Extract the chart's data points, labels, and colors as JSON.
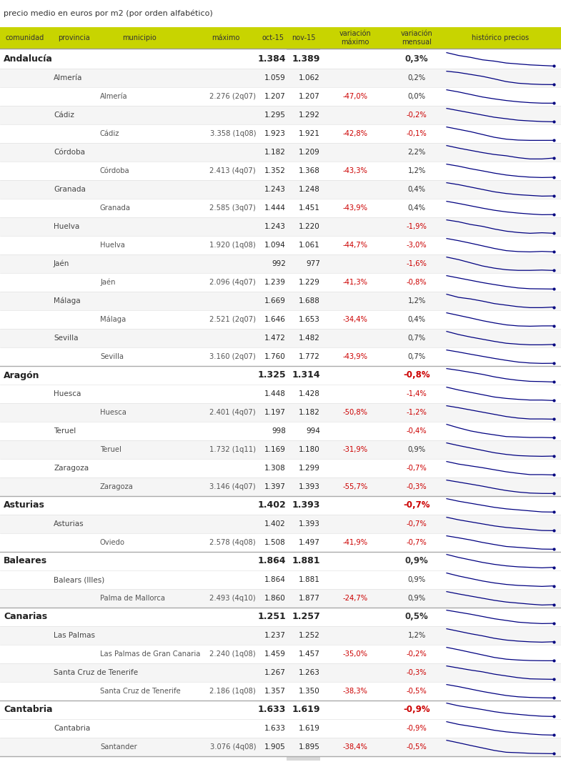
{
  "title": "precio medio en euros por m2 (por orden alfabético)",
  "header": [
    "comunidad",
    "provincia",
    "municipio",
    "máximo",
    "oct-15",
    "nov-15",
    "variación\nmáximo",
    "variación\nmensual",
    "histórico precios"
  ],
  "col_header_bg": "#c8d400",
  "rows": [
    {
      "level": 0,
      "col0": "Andalucía",
      "col1": "",
      "col2": "",
      "col3": "",
      "oct15": "1.384",
      "nov15": "1.389",
      "var_max": "",
      "var_men": "0,3%",
      "var_max_neg": false,
      "var_men_neg": false
    },
    {
      "level": 1,
      "col0": "",
      "col1": "Almería",
      "col2": "",
      "col3": "",
      "oct15": "1.059",
      "nov15": "1.062",
      "var_max": "",
      "var_men": "0,2%",
      "var_max_neg": false,
      "var_men_neg": false
    },
    {
      "level": 2,
      "col0": "",
      "col1": "",
      "col2": "Almería",
      "col3": "2.276 (2q07)",
      "oct15": "1.207",
      "nov15": "1.207",
      "var_max": "-47,0%",
      "var_men": "0,0%",
      "var_max_neg": true,
      "var_men_neg": false
    },
    {
      "level": 1,
      "col0": "",
      "col1": "Cádiz",
      "col2": "",
      "col3": "",
      "oct15": "1.295",
      "nov15": "1.292",
      "var_max": "",
      "var_men": "-0,2%",
      "var_max_neg": false,
      "var_men_neg": true
    },
    {
      "level": 2,
      "col0": "",
      "col1": "",
      "col2": "Cádiz",
      "col3": "3.358 (1q08)",
      "oct15": "1.923",
      "nov15": "1.921",
      "var_max": "-42,8%",
      "var_men": "-0,1%",
      "var_max_neg": true,
      "var_men_neg": true
    },
    {
      "level": 1,
      "col0": "",
      "col1": "Córdoba",
      "col2": "",
      "col3": "",
      "oct15": "1.182",
      "nov15": "1.209",
      "var_max": "",
      "var_men": "2,2%",
      "var_max_neg": false,
      "var_men_neg": false
    },
    {
      "level": 2,
      "col0": "",
      "col1": "",
      "col2": "Córdoba",
      "col3": "2.413 (4q07)",
      "oct15": "1.352",
      "nov15": "1.368",
      "var_max": "-43,3%",
      "var_men": "1,2%",
      "var_max_neg": true,
      "var_men_neg": false
    },
    {
      "level": 1,
      "col0": "",
      "col1": "Granada",
      "col2": "",
      "col3": "",
      "oct15": "1.243",
      "nov15": "1.248",
      "var_max": "",
      "var_men": "0,4%",
      "var_max_neg": false,
      "var_men_neg": false
    },
    {
      "level": 2,
      "col0": "",
      "col1": "",
      "col2": "Granada",
      "col3": "2.585 (3q07)",
      "oct15": "1.444",
      "nov15": "1.451",
      "var_max": "-43,9%",
      "var_men": "0,4%",
      "var_max_neg": true,
      "var_men_neg": false
    },
    {
      "level": 1,
      "col0": "",
      "col1": "Huelva",
      "col2": "",
      "col3": "",
      "oct15": "1.243",
      "nov15": "1.220",
      "var_max": "",
      "var_men": "-1,9%",
      "var_max_neg": false,
      "var_men_neg": true
    },
    {
      "level": 2,
      "col0": "",
      "col1": "",
      "col2": "Huelva",
      "col3": "1.920 (1q08)",
      "oct15": "1.094",
      "nov15": "1.061",
      "var_max": "-44,7%",
      "var_men": "-3,0%",
      "var_max_neg": true,
      "var_men_neg": true
    },
    {
      "level": 1,
      "col0": "",
      "col1": "Jaén",
      "col2": "",
      "col3": "",
      "oct15": "992",
      "nov15": "977",
      "var_max": "",
      "var_men": "-1,6%",
      "var_max_neg": false,
      "var_men_neg": true
    },
    {
      "level": 2,
      "col0": "",
      "col1": "",
      "col2": "Jaén",
      "col3": "2.096 (4q07)",
      "oct15": "1.239",
      "nov15": "1.229",
      "var_max": "-41,3%",
      "var_men": "-0,8%",
      "var_max_neg": true,
      "var_men_neg": true
    },
    {
      "level": 1,
      "col0": "",
      "col1": "Málaga",
      "col2": "",
      "col3": "",
      "oct15": "1.669",
      "nov15": "1.688",
      "var_max": "",
      "var_men": "1,2%",
      "var_max_neg": false,
      "var_men_neg": false
    },
    {
      "level": 2,
      "col0": "",
      "col1": "",
      "col2": "Málaga",
      "col3": "2.521 (2q07)",
      "oct15": "1.646",
      "nov15": "1.653",
      "var_max": "-34,4%",
      "var_men": "0,4%",
      "var_max_neg": true,
      "var_men_neg": false
    },
    {
      "level": 1,
      "col0": "",
      "col1": "Sevilla",
      "col2": "",
      "col3": "",
      "oct15": "1.472",
      "nov15": "1.482",
      "var_max": "",
      "var_men": "0,7%",
      "var_max_neg": false,
      "var_men_neg": false
    },
    {
      "level": 2,
      "col0": "",
      "col1": "",
      "col2": "Sevilla",
      "col3": "3.160 (2q07)",
      "oct15": "1.760",
      "nov15": "1.772",
      "var_max": "-43,9%",
      "var_men": "0,7%",
      "var_max_neg": true,
      "var_men_neg": false
    },
    {
      "level": 0,
      "col0": "Aragón",
      "col1": "",
      "col2": "",
      "col3": "",
      "oct15": "1.325",
      "nov15": "1.314",
      "var_max": "",
      "var_men": "-0,8%",
      "var_max_neg": false,
      "var_men_neg": true
    },
    {
      "level": 1,
      "col0": "",
      "col1": "Huesca",
      "col2": "",
      "col3": "",
      "oct15": "1.448",
      "nov15": "1.428",
      "var_max": "",
      "var_men": "-1,4%",
      "var_max_neg": false,
      "var_men_neg": true
    },
    {
      "level": 2,
      "col0": "",
      "col1": "",
      "col2": "Huesca",
      "col3": "2.401 (4q07)",
      "oct15": "1.197",
      "nov15": "1.182",
      "var_max": "-50,8%",
      "var_men": "-1,2%",
      "var_max_neg": true,
      "var_men_neg": true
    },
    {
      "level": 1,
      "col0": "",
      "col1": "Teruel",
      "col2": "",
      "col3": "",
      "oct15": "998",
      "nov15": "994",
      "var_max": "",
      "var_men": "-0,4%",
      "var_max_neg": false,
      "var_men_neg": true
    },
    {
      "level": 2,
      "col0": "",
      "col1": "",
      "col2": "Teruel",
      "col3": "1.732 (1q11)",
      "oct15": "1.169",
      "nov15": "1.180",
      "var_max": "-31,9%",
      "var_men": "0,9%",
      "var_max_neg": true,
      "var_men_neg": false
    },
    {
      "level": 1,
      "col0": "",
      "col1": "Zaragoza",
      "col2": "",
      "col3": "",
      "oct15": "1.308",
      "nov15": "1.299",
      "var_max": "",
      "var_men": "-0,7%",
      "var_max_neg": false,
      "var_men_neg": true
    },
    {
      "level": 2,
      "col0": "",
      "col1": "",
      "col2": "Zaragoza",
      "col3": "3.146 (4q07)",
      "oct15": "1.397",
      "nov15": "1.393",
      "var_max": "-55,7%",
      "var_men": "-0,3%",
      "var_max_neg": true,
      "var_men_neg": true
    },
    {
      "level": 0,
      "col0": "Asturias",
      "col1": "",
      "col2": "",
      "col3": "",
      "oct15": "1.402",
      "nov15": "1.393",
      "var_max": "",
      "var_men": "-0,7%",
      "var_max_neg": false,
      "var_men_neg": true
    },
    {
      "level": 1,
      "col0": "",
      "col1": "Asturias",
      "col2": "",
      "col3": "",
      "oct15": "1.402",
      "nov15": "1.393",
      "var_max": "",
      "var_men": "-0,7%",
      "var_max_neg": false,
      "var_men_neg": true
    },
    {
      "level": 2,
      "col0": "",
      "col1": "",
      "col2": "Oviedo",
      "col3": "2.578 (4q08)",
      "oct15": "1.508",
      "nov15": "1.497",
      "var_max": "-41,9%",
      "var_men": "-0,7%",
      "var_max_neg": true,
      "var_men_neg": true
    },
    {
      "level": 0,
      "col0": "Baleares",
      "col1": "",
      "col2": "",
      "col3": "",
      "oct15": "1.864",
      "nov15": "1.881",
      "var_max": "",
      "var_men": "0,9%",
      "var_max_neg": false,
      "var_men_neg": false
    },
    {
      "level": 1,
      "col0": "",
      "col1": "Balears (Illes)",
      "col2": "",
      "col3": "",
      "oct15": "1.864",
      "nov15": "1.881",
      "var_max": "",
      "var_men": "0,9%",
      "var_max_neg": false,
      "var_men_neg": false
    },
    {
      "level": 2,
      "col0": "",
      "col1": "",
      "col2": "Palma de Mallorca",
      "col3": "2.493 (4q10)",
      "oct15": "1.860",
      "nov15": "1.877",
      "var_max": "-24,7%",
      "var_men": "0,9%",
      "var_max_neg": true,
      "var_men_neg": false
    },
    {
      "level": 0,
      "col0": "Canarias",
      "col1": "",
      "col2": "",
      "col3": "",
      "oct15": "1.251",
      "nov15": "1.257",
      "var_max": "",
      "var_men": "0,5%",
      "var_max_neg": false,
      "var_men_neg": false
    },
    {
      "level": 1,
      "col0": "",
      "col1": "Las Palmas",
      "col2": "",
      "col3": "",
      "oct15": "1.237",
      "nov15": "1.252",
      "var_max": "",
      "var_men": "1,2%",
      "var_max_neg": false,
      "var_men_neg": false
    },
    {
      "level": 2,
      "col0": "",
      "col1": "",
      "col2": "Las Palmas de Gran Canaria",
      "col3": "2.240 (1q08)",
      "oct15": "1.459",
      "nov15": "1.457",
      "var_max": "-35,0%",
      "var_men": "-0,2%",
      "var_max_neg": true,
      "var_men_neg": true
    },
    {
      "level": 1,
      "col0": "",
      "col1": "Santa Cruz de Tenerife",
      "col2": "",
      "col3": "",
      "oct15": "1.267",
      "nov15": "1.263",
      "var_max": "",
      "var_men": "-0,3%",
      "var_max_neg": false,
      "var_men_neg": true
    },
    {
      "level": 2,
      "col0": "",
      "col1": "",
      "col2": "Santa Cruz de Tenerife",
      "col3": "2.186 (1q08)",
      "oct15": "1.357",
      "nov15": "1.350",
      "var_max": "-38,3%",
      "var_men": "-0,5%",
      "var_max_neg": true,
      "var_men_neg": true
    },
    {
      "level": 0,
      "col0": "Cantabria",
      "col1": "",
      "col2": "",
      "col3": "",
      "oct15": "1.633",
      "nov15": "1.619",
      "var_max": "",
      "var_men": "-0,9%",
      "var_max_neg": false,
      "var_men_neg": true
    },
    {
      "level": 1,
      "col0": "",
      "col1": "Cantabria",
      "col2": "",
      "col3": "",
      "oct15": "1.633",
      "nov15": "1.619",
      "var_max": "",
      "var_men": "-0,9%",
      "var_max_neg": false,
      "var_men_neg": true
    },
    {
      "level": 2,
      "col0": "",
      "col1": "",
      "col2": "Santander",
      "col3": "3.076 (4q08)",
      "oct15": "1.905",
      "nov15": "1.895",
      "var_max": "-38,4%",
      "var_men": "-0,5%",
      "var_max_neg": true,
      "var_men_neg": true
    }
  ],
  "sparkline_data": [
    [
      2.1,
      1.95,
      1.85,
      1.72,
      1.65,
      1.55,
      1.5,
      1.45,
      1.42,
      1.39
    ],
    [
      1.9,
      1.82,
      1.7,
      1.58,
      1.42,
      1.25,
      1.15,
      1.1,
      1.07,
      1.062
    ],
    [
      2.27,
      2.1,
      1.9,
      1.7,
      1.55,
      1.42,
      1.32,
      1.25,
      1.21,
      1.207
    ],
    [
      2.2,
      2.05,
      1.9,
      1.75,
      1.6,
      1.5,
      1.4,
      1.35,
      1.31,
      1.292
    ],
    [
      3.35,
      3.1,
      2.85,
      2.55,
      2.25,
      2.05,
      1.95,
      1.92,
      1.92,
      1.921
    ],
    [
      1.6,
      1.52,
      1.45,
      1.38,
      1.32,
      1.28,
      1.22,
      1.18,
      1.18,
      1.209
    ],
    [
      2.41,
      2.25,
      2.05,
      1.88,
      1.7,
      1.55,
      1.45,
      1.38,
      1.35,
      1.368
    ],
    [
      1.8,
      1.72,
      1.62,
      1.52,
      1.42,
      1.35,
      1.3,
      1.27,
      1.24,
      1.248
    ],
    [
      2.58,
      2.4,
      2.2,
      2.0,
      1.82,
      1.68,
      1.58,
      1.5,
      1.44,
      1.451
    ],
    [
      1.72,
      1.65,
      1.55,
      1.48,
      1.38,
      1.3,
      1.25,
      1.22,
      1.24,
      1.22
    ],
    [
      1.92,
      1.78,
      1.62,
      1.45,
      1.28,
      1.14,
      1.08,
      1.06,
      1.09,
      1.061
    ],
    [
      1.4,
      1.32,
      1.22,
      1.12,
      1.05,
      1.0,
      0.98,
      0.98,
      0.99,
      0.977
    ],
    [
      2.1,
      1.95,
      1.8,
      1.65,
      1.52,
      1.4,
      1.3,
      1.25,
      1.24,
      1.229
    ],
    [
      2.1,
      2.0,
      1.95,
      1.88,
      1.8,
      1.75,
      1.7,
      1.67,
      1.67,
      1.688
    ],
    [
      2.52,
      2.35,
      2.18,
      2.0,
      1.85,
      1.72,
      1.65,
      1.63,
      1.65,
      1.653
    ],
    [
      1.9,
      1.8,
      1.72,
      1.65,
      1.58,
      1.52,
      1.49,
      1.47,
      1.47,
      1.482
    ],
    [
      3.16,
      2.95,
      2.72,
      2.5,
      2.28,
      2.08,
      1.9,
      1.8,
      1.76,
      1.772
    ],
    [
      1.85,
      1.78,
      1.7,
      1.62,
      1.52,
      1.44,
      1.38,
      1.34,
      1.33,
      1.314
    ],
    [
      2.0,
      1.88,
      1.78,
      1.68,
      1.58,
      1.52,
      1.48,
      1.45,
      1.45,
      1.428
    ],
    [
      2.4,
      2.22,
      2.02,
      1.82,
      1.62,
      1.42,
      1.28,
      1.2,
      1.2,
      1.182
    ],
    [
      1.3,
      1.22,
      1.15,
      1.1,
      1.06,
      1.02,
      1.01,
      1.0,
      1.0,
      0.994
    ],
    [
      1.73,
      1.62,
      1.52,
      1.42,
      1.32,
      1.25,
      1.2,
      1.18,
      1.17,
      1.18
    ],
    [
      1.82,
      1.72,
      1.65,
      1.58,
      1.5,
      1.42,
      1.36,
      1.31,
      1.31,
      1.299
    ],
    [
      3.14,
      2.88,
      2.62,
      2.35,
      2.05,
      1.78,
      1.58,
      1.45,
      1.4,
      1.393
    ],
    [
      1.92,
      1.82,
      1.74,
      1.66,
      1.58,
      1.52,
      1.48,
      1.44,
      1.4,
      1.393
    ],
    [
      1.92,
      1.82,
      1.74,
      1.66,
      1.58,
      1.52,
      1.48,
      1.44,
      1.4,
      1.393
    ],
    [
      2.58,
      2.42,
      2.25,
      2.05,
      1.88,
      1.72,
      1.65,
      1.58,
      1.51,
      1.497
    ],
    [
      2.4,
      2.28,
      2.18,
      2.08,
      2.0,
      1.94,
      1.9,
      1.88,
      1.86,
      1.881
    ],
    [
      2.4,
      2.28,
      2.18,
      2.08,
      2.0,
      1.94,
      1.9,
      1.88,
      1.86,
      1.881
    ],
    [
      2.49,
      2.38,
      2.28,
      2.18,
      2.08,
      2.0,
      1.95,
      1.9,
      1.86,
      1.877
    ],
    [
      1.72,
      1.65,
      1.58,
      1.5,
      1.42,
      1.36,
      1.3,
      1.27,
      1.25,
      1.257
    ],
    [
      1.62,
      1.55,
      1.48,
      1.42,
      1.35,
      1.3,
      1.27,
      1.25,
      1.24,
      1.252
    ],
    [
      2.24,
      2.1,
      1.95,
      1.8,
      1.65,
      1.55,
      1.5,
      1.47,
      1.46,
      1.457
    ],
    [
      1.72,
      1.65,
      1.58,
      1.52,
      1.44,
      1.38,
      1.32,
      1.28,
      1.27,
      1.263
    ],
    [
      2.18,
      2.05,
      1.9,
      1.75,
      1.62,
      1.5,
      1.42,
      1.38,
      1.36,
      1.35
    ],
    [
      2.12,
      2.02,
      1.95,
      1.88,
      1.8,
      1.74,
      1.7,
      1.66,
      1.63,
      1.619
    ],
    [
      2.12,
      2.02,
      1.95,
      1.88,
      1.8,
      1.74,
      1.7,
      1.66,
      1.63,
      1.619
    ],
    [
      3.07,
      2.85,
      2.62,
      2.4,
      2.18,
      2.02,
      1.98,
      1.93,
      1.91,
      1.895
    ]
  ]
}
